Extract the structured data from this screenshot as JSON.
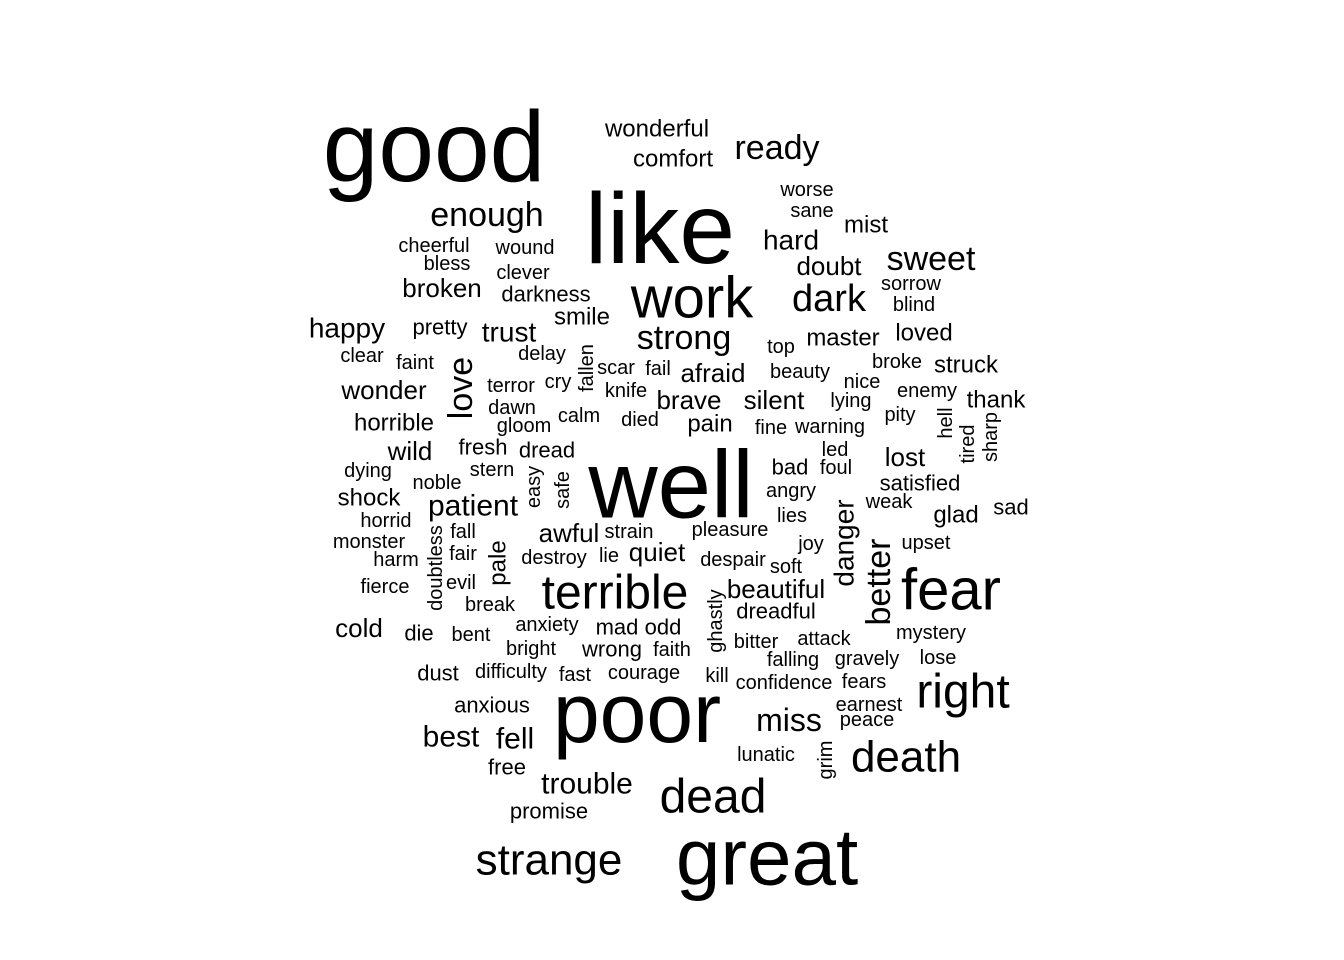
{
  "text_color": "#000000",
  "background": "#ffffff",
  "words": [
    {
      "text": "good"
    },
    {
      "text": "like"
    },
    {
      "text": "well"
    },
    {
      "text": "poor"
    },
    {
      "text": "great"
    },
    {
      "text": "work"
    },
    {
      "text": "fear"
    },
    {
      "text": "terrible"
    },
    {
      "text": "dead"
    },
    {
      "text": "right"
    },
    {
      "text": "death"
    },
    {
      "text": "strange"
    },
    {
      "text": "dark"
    },
    {
      "text": "enough"
    },
    {
      "text": "sweet"
    },
    {
      "text": "ready"
    },
    {
      "text": "strong"
    },
    {
      "text": "better"
    },
    {
      "text": "love"
    },
    {
      "text": "miss"
    },
    {
      "text": "trouble"
    },
    {
      "text": "patient"
    },
    {
      "text": "fell"
    },
    {
      "text": "best"
    },
    {
      "text": "happy"
    },
    {
      "text": "trust"
    },
    {
      "text": "hard"
    },
    {
      "text": "danger"
    },
    {
      "text": "doubt"
    },
    {
      "text": "broken"
    },
    {
      "text": "afraid"
    },
    {
      "text": "wonder"
    },
    {
      "text": "silent"
    },
    {
      "text": "brave"
    },
    {
      "text": "lost"
    },
    {
      "text": "wild"
    },
    {
      "text": "cold"
    },
    {
      "text": "awful"
    },
    {
      "text": "quiet"
    },
    {
      "text": "beautiful"
    },
    {
      "text": "comfort"
    },
    {
      "text": "wonderful"
    },
    {
      "text": "master"
    },
    {
      "text": "pain"
    },
    {
      "text": "shock"
    },
    {
      "text": "glad"
    },
    {
      "text": "thank"
    },
    {
      "text": "struck"
    },
    {
      "text": "horrible"
    },
    {
      "text": "pale"
    },
    {
      "text": "smile"
    },
    {
      "text": "mist"
    },
    {
      "text": "loved"
    },
    {
      "text": "darkness"
    },
    {
      "text": "bad"
    },
    {
      "text": "satisfied"
    },
    {
      "text": "sad"
    },
    {
      "text": "anxious"
    },
    {
      "text": "promise"
    },
    {
      "text": "dust"
    },
    {
      "text": "die"
    },
    {
      "text": "wrong"
    },
    {
      "text": "mad"
    },
    {
      "text": "odd"
    },
    {
      "text": "free"
    },
    {
      "text": "dreadful"
    },
    {
      "text": "fresh"
    },
    {
      "text": "dread"
    },
    {
      "text": "pretty"
    },
    {
      "text": "wound"
    },
    {
      "text": "clever"
    },
    {
      "text": "dawn"
    },
    {
      "text": "terror"
    },
    {
      "text": "lunatic"
    },
    {
      "text": "falling"
    },
    {
      "text": "fears"
    },
    {
      "text": "earnest"
    },
    {
      "text": "worse"
    },
    {
      "text": "sane"
    },
    {
      "text": "sorrow"
    },
    {
      "text": "blind"
    },
    {
      "text": "cheerful"
    },
    {
      "text": "bless"
    },
    {
      "text": "clear"
    },
    {
      "text": "faint"
    },
    {
      "text": "delay"
    },
    {
      "text": "fallen"
    },
    {
      "text": "scar"
    },
    {
      "text": "fail"
    },
    {
      "text": "top"
    },
    {
      "text": "beauty"
    },
    {
      "text": "broke"
    },
    {
      "text": "cry"
    },
    {
      "text": "knife"
    },
    {
      "text": "nice"
    },
    {
      "text": "enemy"
    },
    {
      "text": "gloom"
    },
    {
      "text": "calm"
    },
    {
      "text": "died"
    },
    {
      "text": "lying"
    },
    {
      "text": "pity"
    },
    {
      "text": "fine"
    },
    {
      "text": "warning"
    },
    {
      "text": "hell"
    },
    {
      "text": "tired"
    },
    {
      "text": "sharp"
    },
    {
      "text": "led"
    },
    {
      "text": "foul"
    },
    {
      "text": "dying"
    },
    {
      "text": "stern"
    },
    {
      "text": "noble"
    },
    {
      "text": "easy"
    },
    {
      "text": "safe"
    },
    {
      "text": "angry"
    },
    {
      "text": "weak"
    },
    {
      "text": "horrid"
    },
    {
      "text": "lies"
    },
    {
      "text": "fall"
    },
    {
      "text": "strain"
    },
    {
      "text": "pleasure"
    },
    {
      "text": "monster"
    },
    {
      "text": "doubtless"
    },
    {
      "text": "fair"
    },
    {
      "text": "destroy"
    },
    {
      "text": "lie"
    },
    {
      "text": "despair"
    },
    {
      "text": "joy"
    },
    {
      "text": "upset"
    },
    {
      "text": "harm"
    },
    {
      "text": "soft"
    },
    {
      "text": "fierce"
    },
    {
      "text": "evil"
    },
    {
      "text": "break"
    },
    {
      "text": "ghastly"
    },
    {
      "text": "anxiety"
    },
    {
      "text": "bent"
    },
    {
      "text": "bitter"
    },
    {
      "text": "attack"
    },
    {
      "text": "mystery"
    },
    {
      "text": "bright"
    },
    {
      "text": "faith"
    },
    {
      "text": "gravely"
    },
    {
      "text": "lose"
    },
    {
      "text": "difficulty"
    },
    {
      "text": "fast"
    },
    {
      "text": "courage"
    },
    {
      "text": "kill"
    },
    {
      "text": "confidence"
    },
    {
      "text": "peace"
    },
    {
      "text": "grim"
    }
  ]
}
